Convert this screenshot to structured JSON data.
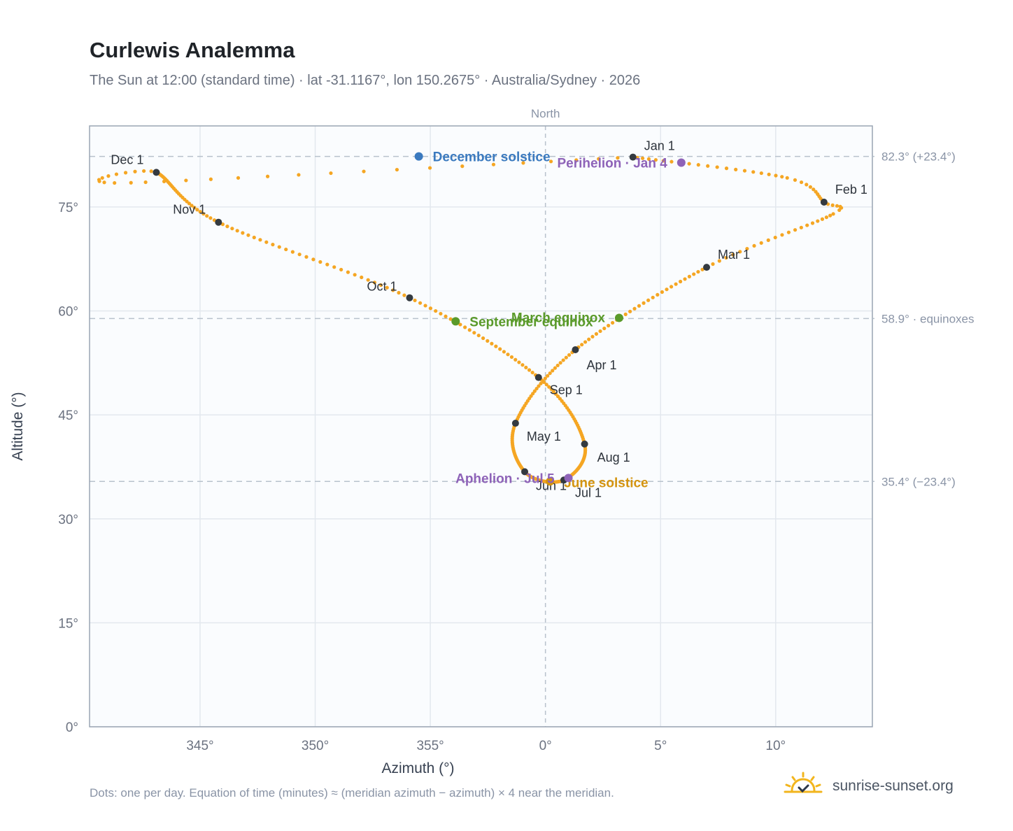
{
  "header": {
    "title": "Curlewis Analemma",
    "subtitle": "The Sun at 12:00 (standard time) · lat -31.1167°, lon 150.2675° · Australia/Sydney · 2026"
  },
  "footer": {
    "note": "Dots: one per day. Equation of time (minutes) ≈ (meridian azimuth − azimuth) × 4 near the meridian.",
    "brand": "sunrise-sunset.org"
  },
  "colors": {
    "path": "#f5a623",
    "month_dot": "#343a40",
    "december_solstice": "#3b7abf",
    "june_solstice": "#d4940f",
    "equinox": "#5a9a2a",
    "perihelion_aphelion": "#8e63b8",
    "guide": "#b8c2cc",
    "plot_bg": "#fafcfe"
  },
  "chart_data": {
    "type": "scatter",
    "xlabel": "Azimuth (°)",
    "ylabel": "Altitude (°)",
    "top_label": "North",
    "xlim": [
      340.2,
      14.2
    ],
    "ylim": [
      0,
      86.7
    ],
    "x_ticks": [
      {
        "value": 345,
        "label": "345°"
      },
      {
        "value": 350,
        "label": "350°"
      },
      {
        "value": 355,
        "label": "355°"
      },
      {
        "value": 0,
        "label": "0°"
      },
      {
        "value": 5,
        "label": "5°"
      },
      {
        "value": 10,
        "label": "10°"
      }
    ],
    "y_ticks": [
      {
        "value": 0,
        "label": "0°"
      },
      {
        "value": 15,
        "label": "15°"
      },
      {
        "value": 30,
        "label": "30°"
      },
      {
        "value": 45,
        "label": "45°"
      },
      {
        "value": 60,
        "label": "60°"
      },
      {
        "value": 75,
        "label": "75°"
      }
    ],
    "grid": true,
    "reference_lines": [
      {
        "altitude": 82.3,
        "label": "82.3° (+23.4°)"
      },
      {
        "altitude": 58.9,
        "label": "58.9° · equinoxes"
      },
      {
        "altitude": 35.4,
        "label": "35.4° (−23.4°)"
      }
    ],
    "meridian_azimuth": 0,
    "month_markers": [
      {
        "label": "Jan 1",
        "azimuth": 3.8,
        "altitude": 82.2
      },
      {
        "label": "Feb 1",
        "azimuth": 12.1,
        "altitude": 75.7
      },
      {
        "label": "Mar 1",
        "azimuth": 7.0,
        "altitude": 66.3
      },
      {
        "label": "Apr 1",
        "azimuth": 1.3,
        "altitude": 54.4
      },
      {
        "label": "May 1",
        "azimuth": -1.3,
        "altitude": 43.8
      },
      {
        "label": "Jun 1",
        "azimuth": -0.9,
        "altitude": 36.8
      },
      {
        "label": "Jul 1",
        "azimuth": 0.8,
        "altitude": 35.6
      },
      {
        "label": "Aug 1",
        "azimuth": 1.7,
        "altitude": 40.8
      },
      {
        "label": "Sep 1",
        "azimuth": -0.3,
        "altitude": 50.4
      },
      {
        "label": "Oct 1",
        "azimuth": -5.9,
        "altitude": 61.9
      },
      {
        "label": "Nov 1",
        "azimuth": -14.2,
        "altitude": 72.8
      },
      {
        "label": "Dec 1",
        "azimuth": -16.9,
        "altitude": 80.0
      }
    ],
    "events": [
      {
        "label": "December solstice",
        "azimuth": -5.5,
        "altitude": 82.3,
        "color_key": "december_solstice"
      },
      {
        "label": "Perihelion · Jan 4",
        "azimuth": 5.9,
        "altitude": 81.4,
        "color_key": "perihelion_aphelion"
      },
      {
        "label": "March equinox",
        "azimuth": 3.2,
        "altitude": 59.0,
        "color_key": "equinox"
      },
      {
        "label": "September equinox",
        "azimuth": -3.9,
        "altitude": 58.5,
        "color_key": "equinox"
      },
      {
        "label": "June solstice",
        "azimuth": 0.2,
        "altitude": 35.4,
        "color_key": "june_solstice"
      },
      {
        "label": "Aphelion · Jul 5",
        "azimuth": 1.0,
        "altitude": 35.9,
        "color_key": "perihelion_aphelion"
      }
    ]
  }
}
